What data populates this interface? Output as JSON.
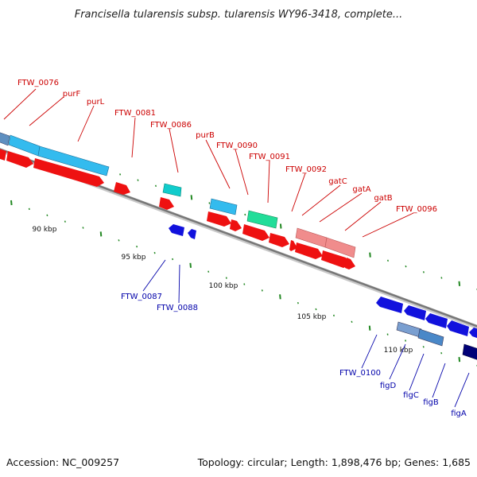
{
  "title": "Francisella tularensis subsp. tularensis WY96-3418, complete...",
  "footer": {
    "accession": "Accession: NC_009257",
    "summary": "Topology: circular; Length: 1,898,476 bp; Genes: 1,685"
  },
  "scale_ticks": [
    "90 kbp",
    "95 kbp",
    "100 kbp",
    "105 kbp",
    "110 kbp"
  ],
  "forward_genes": [
    "FTW_0076",
    "purF",
    "purL",
    "FTW_0081",
    "FTW_0086",
    "purB",
    "FTW_0090",
    "FTW_0091",
    "FTW_0092",
    "gatC",
    "gatA",
    "gatB",
    "FTW_0096"
  ],
  "reverse_genes": [
    "FTW_0087",
    "FTW_0088",
    "FTW_0100",
    "figD",
    "figC",
    "figB",
    "figA"
  ],
  "colors": {
    "forward_label": "#cc0000",
    "reverse_label": "#0000aa",
    "cds_forward": "#ee1111",
    "cds_reverse": "#1111dd",
    "feature_light_blue": "#33bbee",
    "feature_cyan": "#11cccc",
    "feature_green": "#22dd99",
    "feature_pink": "#f08c8c",
    "feature_navy": "#000077",
    "backbone": "#888888",
    "tick_marks": "#228822"
  }
}
